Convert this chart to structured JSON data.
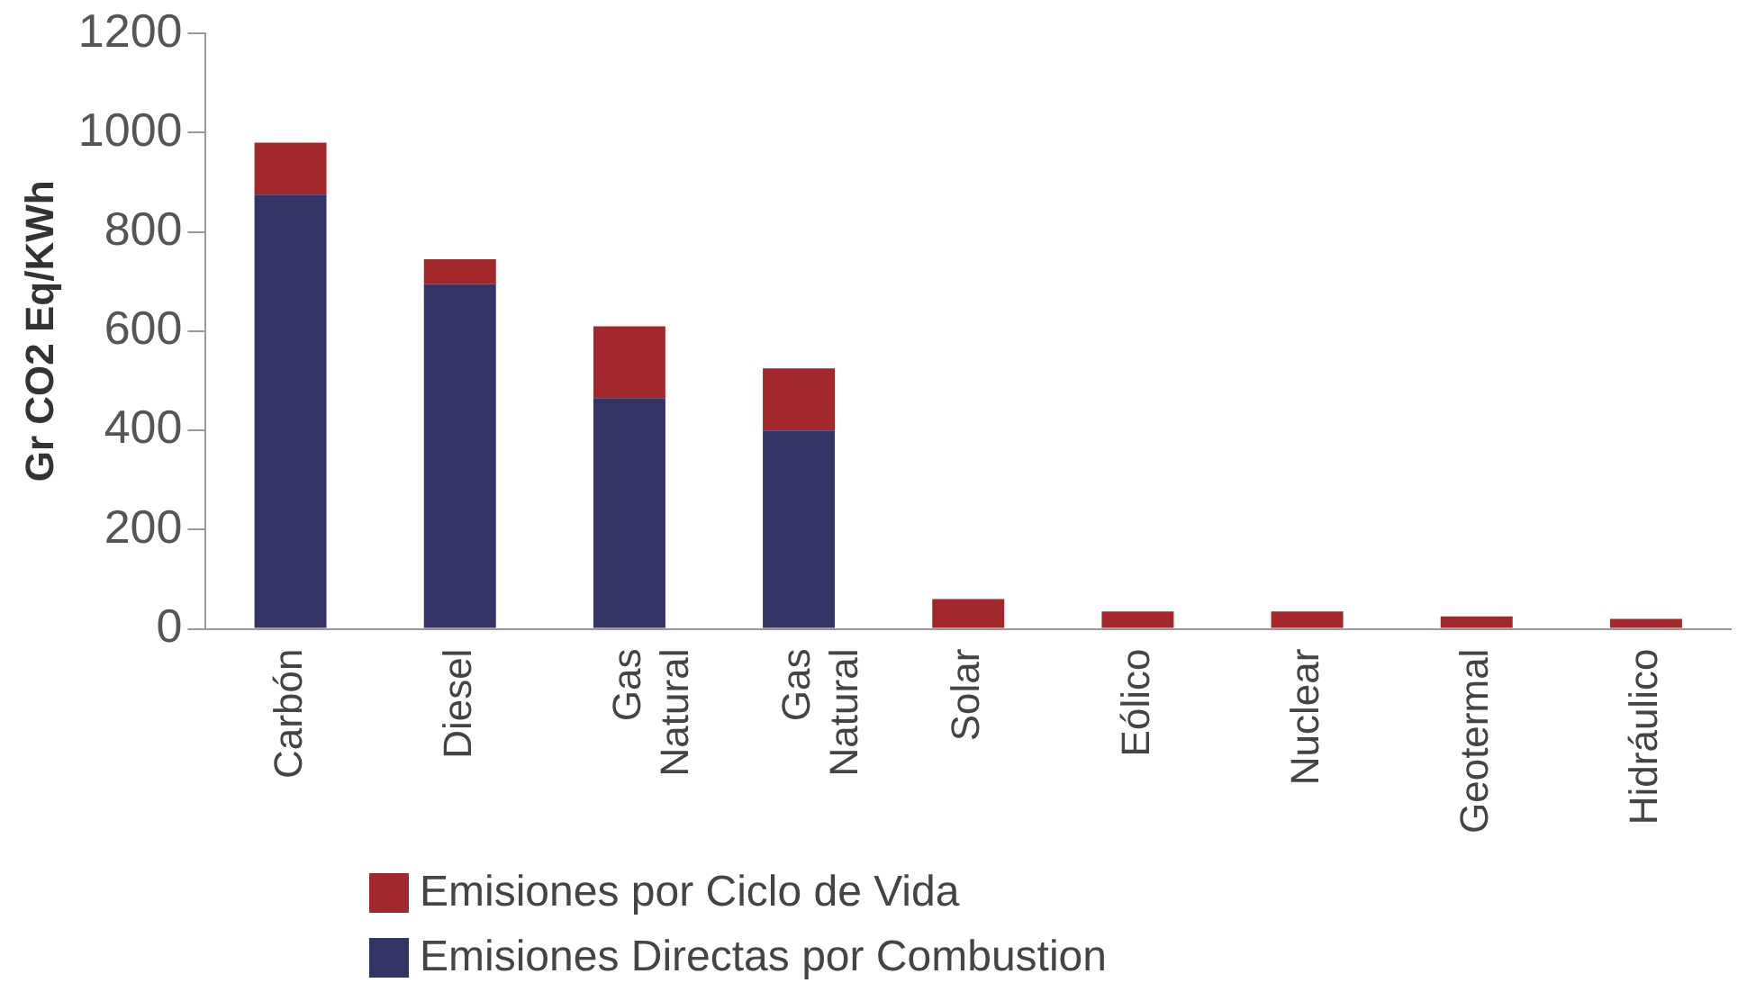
{
  "chart_data": {
    "type": "bar",
    "stacked": true,
    "ylabel": "Gr CO2 Eq/KWh",
    "categories": [
      "Carbón",
      "Diesel",
      "Gas Natural",
      "Gas Natural",
      "Solar",
      "Eólico",
      "Nuclear",
      "Geotermal",
      "Hidráulico"
    ],
    "series": [
      {
        "name": "Emisiones Directas por Combustion",
        "color": "#343366",
        "values": [
          875,
          695,
          465,
          400,
          0,
          0,
          0,
          0,
          0
        ]
      },
      {
        "name": "Emisiones por Ciclo de Vida",
        "color": "#a3282b",
        "values": [
          105,
          50,
          145,
          125,
          60,
          35,
          35,
          25,
          20
        ]
      }
    ],
    "ylim": [
      0,
      1200
    ],
    "yticks": [
      0,
      200,
      400,
      600,
      800,
      1000,
      1200
    ],
    "grid": false,
    "legend": "bottom left"
  }
}
